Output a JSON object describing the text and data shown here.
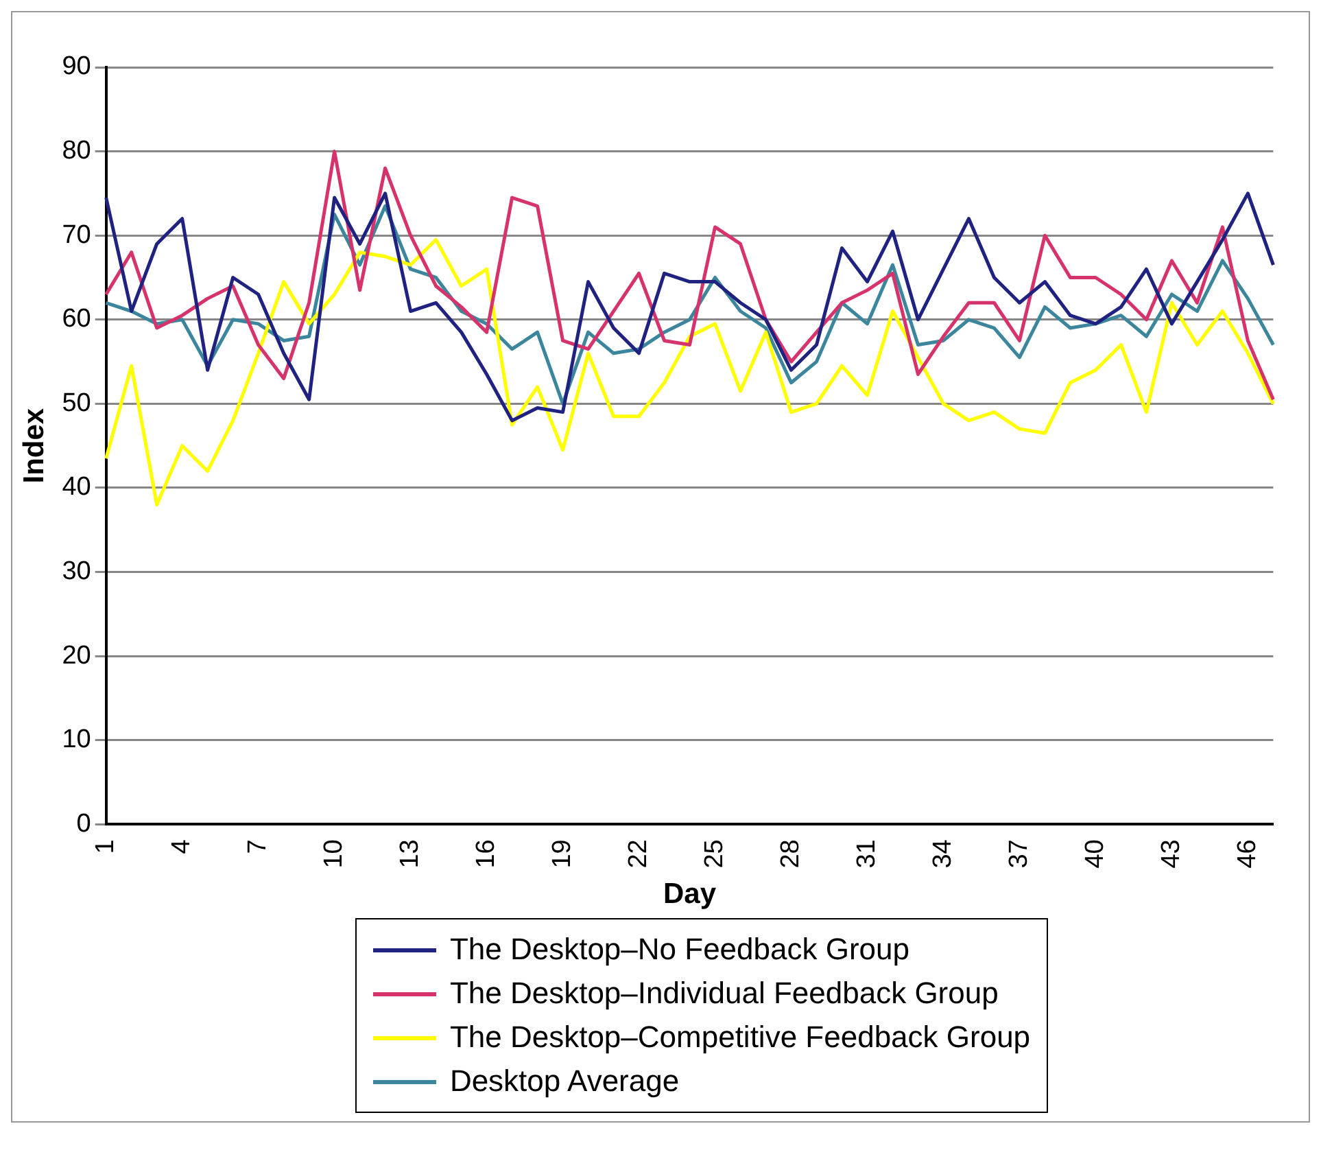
{
  "chart_data": {
    "type": "line",
    "xlabel": "Day",
    "ylabel": "Index",
    "categories": [
      "1",
      null,
      null,
      "4",
      null,
      null,
      "7",
      null,
      null,
      "10",
      null,
      null,
      "13",
      null,
      null,
      "16",
      null,
      null,
      "19",
      null,
      null,
      "22",
      null,
      null,
      "25",
      null,
      null,
      "28",
      null,
      null,
      "31",
      null,
      null,
      "34",
      null,
      null,
      "37",
      null,
      null,
      "40",
      null,
      null,
      "43",
      null,
      null,
      "46",
      null
    ],
    "series": [
      {
        "name": "The Desktop–No Feedback Group",
        "color": "#1f2280",
        "values": [
          74.5,
          61,
          69,
          72,
          54,
          65,
          63,
          56,
          50.5,
          74.5,
          69,
          75,
          61,
          62,
          58.5,
          53.5,
          48,
          49.5,
          49,
          64.5,
          59,
          56,
          65.5,
          64.5,
          64.5,
          62,
          60,
          54,
          57,
          68.5,
          64.5,
          70.5,
          60,
          66,
          72,
          65,
          62,
          64.5,
          60.5,
          59.5,
          61.5,
          66,
          59.5,
          64.5,
          69.5,
          75,
          66.5
        ]
      },
      {
        "name": "The Desktop–Individual Feedback Group",
        "color": "#d6336c",
        "values": [
          63,
          68,
          59,
          60.5,
          62.5,
          64,
          57,
          53,
          62,
          80,
          63.5,
          78,
          70,
          64,
          61.5,
          58.5,
          74.5,
          73.5,
          57.5,
          56.5,
          61,
          65.5,
          57.5,
          57,
          71,
          69,
          60,
          55,
          58.5,
          62,
          63.5,
          65.5,
          53.5,
          58,
          62,
          62,
          57.5,
          70,
          65,
          65,
          63,
          60,
          67,
          62,
          71,
          57.5,
          50.5
        ]
      },
      {
        "name": "The Desktop–Competitive Feedback Group",
        "color": "#ffff00",
        "values": [
          43.5,
          54.5,
          38,
          45,
          42,
          48,
          56,
          64.5,
          59.5,
          63,
          68,
          67.5,
          66.5,
          69.5,
          64,
          66,
          47.5,
          52,
          44.5,
          56,
          48.5,
          48.5,
          52.5,
          58,
          59.5,
          51.5,
          58.5,
          49,
          50,
          54.5,
          51,
          61,
          55.5,
          50,
          48,
          49,
          47,
          46.5,
          52.5,
          54,
          57,
          49,
          62,
          57,
          61,
          56,
          50
        ]
      },
      {
        "name": "Desktop Average",
        "color": "#3b869c",
        "values": [
          62,
          61,
          59.5,
          60,
          54.5,
          60,
          59.5,
          57.5,
          58,
          72.5,
          66.5,
          73.5,
          66,
          65,
          61,
          59.5,
          56.5,
          58.5,
          50,
          58.5,
          56,
          56.5,
          58.5,
          60,
          65,
          61,
          59,
          52.5,
          55,
          62,
          59.5,
          66.5,
          57,
          57.5,
          60,
          59,
          55.5,
          61.5,
          59,
          59.5,
          60.5,
          58,
          63,
          61,
          67,
          62.5,
          57
        ]
      }
    ],
    "ylim": [
      0,
      90
    ],
    "yticks": [
      0,
      10,
      20,
      30,
      40,
      50,
      60,
      70,
      80,
      90
    ],
    "grid": "y",
    "legend": "bottom",
    "marker": "none",
    "line_style": "solid"
  }
}
